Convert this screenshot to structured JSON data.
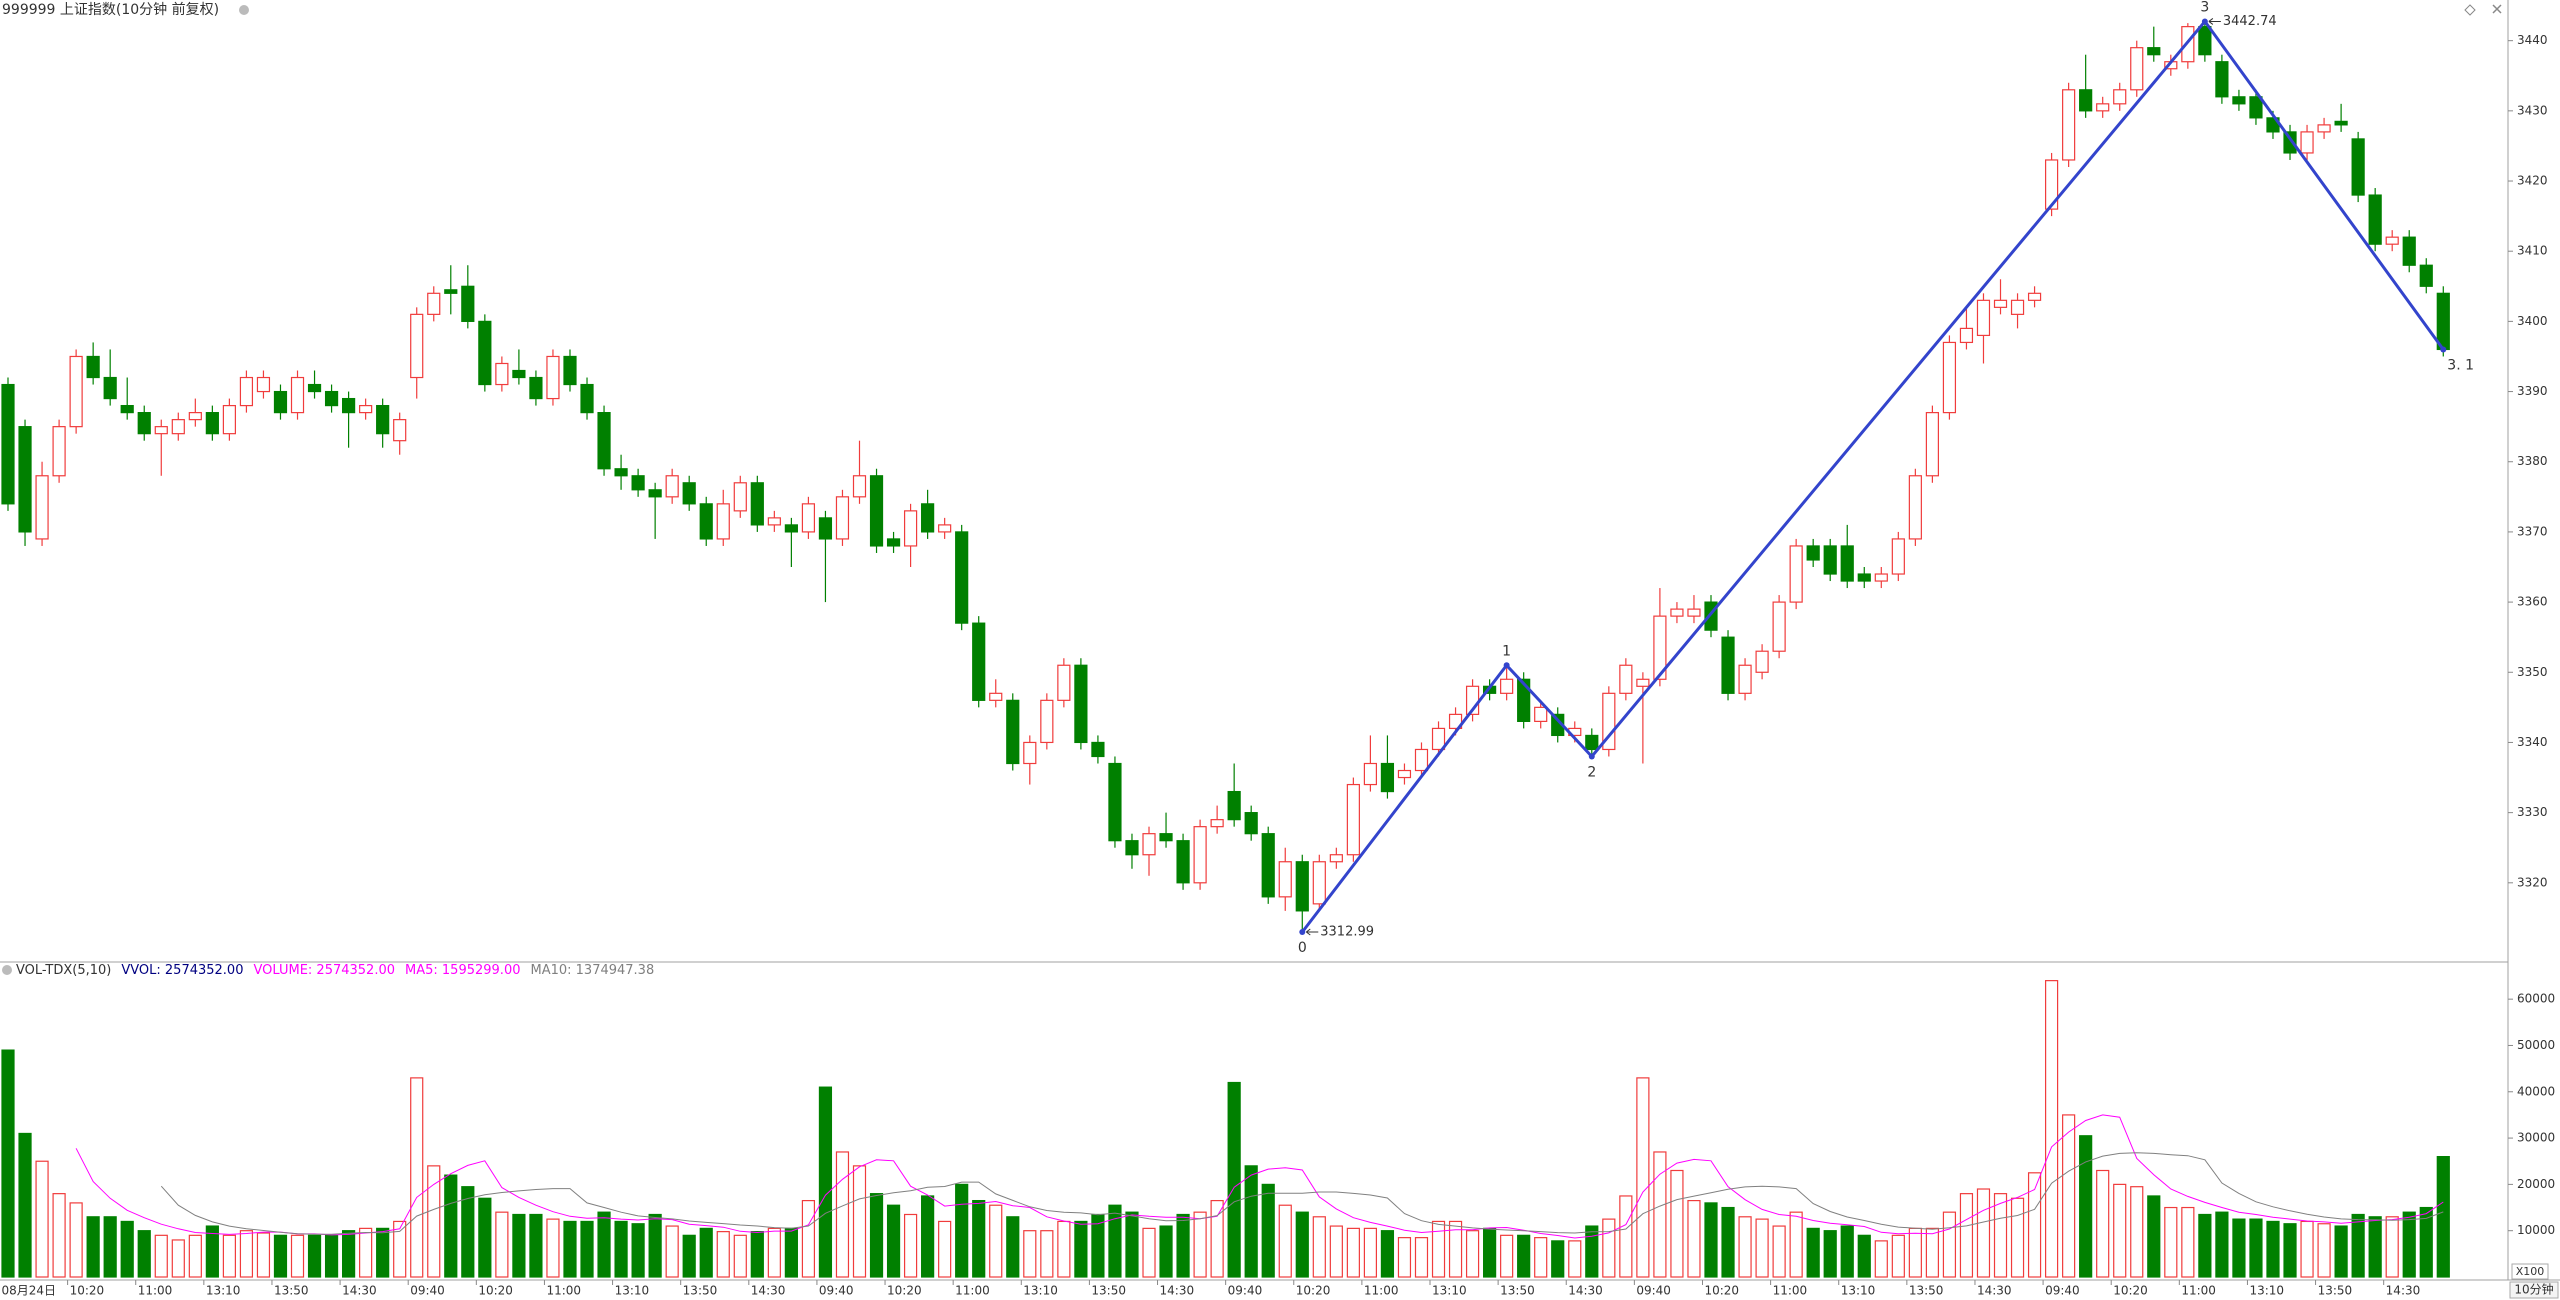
{
  "chart_data": {
    "type": "candlestick",
    "title": "999999 上证指数(10分钟 前复权)",
    "up_color": "#f03c3c",
    "down_color": "#008000",
    "categories": [
      "08月24日",
      null,
      null,
      null,
      "10:20",
      null,
      null,
      null,
      "11:00",
      null,
      null,
      null,
      "13:10",
      null,
      null,
      null,
      "13:50",
      null,
      null,
      null,
      "14:30",
      null,
      null,
      null,
      "09:40",
      null,
      null,
      null,
      "10:20",
      null,
      null,
      null,
      "11:00",
      null,
      null,
      null,
      "13:10",
      null,
      null,
      null,
      "13:50",
      null,
      null,
      null,
      "14:30",
      null,
      null,
      null,
      "09:40",
      null,
      null,
      null,
      "10:20",
      null,
      null,
      null,
      "11:00",
      null,
      null,
      null,
      "13:10",
      null,
      null,
      null,
      "13:50",
      null,
      null,
      null,
      "14:30",
      null,
      null,
      null,
      "09:40",
      null,
      null,
      null,
      "10:20",
      null,
      null,
      null,
      "11:00",
      null,
      null,
      null,
      "13:10",
      null,
      null,
      null,
      "13:50",
      null,
      null,
      null,
      "14:30",
      null,
      null,
      null,
      "09:40",
      null,
      null,
      null,
      "10:20",
      null,
      null,
      null,
      "11:00",
      null,
      null,
      null,
      "13:10",
      null,
      null,
      null,
      "13:50",
      null,
      null,
      null,
      "14:30",
      null,
      null,
      null,
      "09:40",
      null,
      null,
      null,
      "10:20",
      null,
      null,
      null,
      "11:00",
      null,
      null,
      null,
      "13:10",
      null,
      null,
      null,
      "13:50",
      null,
      null,
      null,
      "14:30",
      null,
      null,
      null
    ],
    "open": [
      3391,
      3385,
      3369,
      3378,
      3385,
      3395,
      3392,
      3388,
      3387,
      3384,
      3384,
      3386,
      3387,
      3384,
      3388,
      3390,
      3390,
      3387,
      3391,
      3390,
      3389,
      3387,
      3388,
      3383,
      3392,
      3401,
      3404.5,
      3405,
      3400,
      3391,
      3393,
      3392,
      3389,
      3395,
      3391,
      3387,
      3379,
      3378,
      3376,
      3375,
      3377,
      3374,
      3369,
      3373,
      3377,
      3371,
      3371,
      3370,
      3372,
      3369,
      3375,
      3378,
      3369,
      3368,
      3374,
      3370,
      3370,
      3357,
      3346,
      3346,
      3337,
      3340,
      3346,
      3351,
      3340,
      3337,
      3326,
      3324,
      3327,
      3326,
      3320,
      3328,
      3333,
      3330,
      3327,
      3318,
      3323,
      3317,
      3323,
      3324,
      3334,
      3337,
      3335,
      3336,
      3339,
      3342,
      3344,
      3348,
      3347,
      3349,
      3343,
      3344,
      3341,
      3341,
      3339,
      3347,
      3348,
      3349,
      3358,
      3358,
      3360,
      3355,
      3347,
      3350,
      3353,
      3360,
      3368,
      3368,
      3368,
      3364,
      3363,
      3364,
      3369,
      3378,
      3387,
      3397,
      3398,
      3402,
      3401,
      3403,
      3416,
      3423,
      3433,
      3430,
      3431,
      3433,
      3439,
      3436,
      3437,
      3442,
      3437,
      3432,
      3432,
      3429,
      3427,
      3424,
      3427,
      3428.5,
      3426,
      3418,
      3411,
      3412,
      3408,
      3404
    ],
    "high": [
      3392,
      3386,
      3380,
      3386,
      3396,
      3397,
      3396,
      3392,
      3388,
      3386,
      3387,
      3389,
      3388,
      3389,
      3393,
      3393,
      3391,
      3393,
      3393,
      3391,
      3390,
      3389,
      3389,
      3387,
      3402,
      3405,
      3408,
      3408,
      3401,
      3395,
      3396,
      3393,
      3396,
      3396,
      3392,
      3388,
      3381,
      3379,
      3377,
      3379,
      3378,
      3375,
      3376,
      3378,
      3378,
      3373,
      3372,
      3375,
      3373,
      3376,
      3383,
      3379,
      3370,
      3374,
      3376,
      3372,
      3371,
      3358,
      3349,
      3347,
      3341,
      3347,
      3352,
      3352,
      3341,
      3338,
      3327,
      3328,
      3330,
      3327,
      3329,
      3331,
      3337,
      3331,
      3328,
      3325,
      3324,
      3324,
      3325,
      3335,
      3341,
      3341,
      3337,
      3340,
      3343,
      3345,
      3349,
      3349,
      3351,
      3350,
      3346,
      3345,
      3343,
      3342,
      3348,
      3352,
      3350,
      3362,
      3360,
      3361,
      3361,
      3356,
      3352,
      3354,
      3361,
      3369,
      3369,
      3369,
      3371,
      3365,
      3365,
      3370,
      3379,
      3388,
      3398,
      3402,
      3404,
      3406,
      3404,
      3405,
      3424,
      3434,
      3438,
      3432,
      3434,
      3440,
      3442,
      3438,
      3442.5,
      3442.74,
      3438,
      3433,
      3433,
      3430,
      3428,
      3428,
      3429,
      3431,
      3427,
      3419,
      3413,
      3413,
      3409,
      3405
    ],
    "low": [
      3373,
      3368,
      3368,
      3377,
      3384,
      3391,
      3388,
      3386,
      3383,
      3378,
      3383,
      3385,
      3383,
      3383,
      3387,
      3389,
      3386,
      3386,
      3389,
      3387,
      3382,
      3386,
      3382,
      3381,
      3389,
      3400,
      3401,
      3399,
      3390,
      3390,
      3391,
      3388,
      3388,
      3390,
      3386,
      3378,
      3376,
      3375,
      3369,
      3374,
      3373,
      3368,
      3368,
      3372,
      3370,
      3370,
      3365,
      3369,
      3360,
      3368,
      3374,
      3367,
      3367,
      3365,
      3369,
      3369,
      3356,
      3345,
      3345,
      3336,
      3334,
      3339,
      3345,
      3339,
      3337,
      3325,
      3322,
      3321,
      3325,
      3319,
      3319,
      3327,
      3328,
      3326,
      3317,
      3316,
      3312.99,
      3316,
      3322,
      3323,
      3333,
      3332,
      3334,
      3335,
      3338,
      3341,
      3343,
      3346,
      3346,
      3342,
      3342,
      3340,
      3340,
      3338,
      3338,
      3346,
      3337,
      3348,
      3357,
      3357,
      3355,
      3346,
      3346,
      3349,
      3352,
      3359,
      3365,
      3363,
      3362,
      3362,
      3362,
      3363,
      3368,
      3377,
      3386,
      3396,
      3394,
      3401,
      3399,
      3402,
      3415,
      3422,
      3429,
      3429,
      3430,
      3432,
      3437,
      3435,
      3436,
      3437,
      3431,
      3430,
      3428,
      3426,
      3423,
      3423,
      3426,
      3427,
      3417,
      3410,
      3410,
      3407,
      3404,
      3395
    ],
    "close": [
      3374,
      3370,
      3378,
      3385,
      3395,
      3392,
      3389,
      3387,
      3384,
      3385,
      3386,
      3387,
      3384,
      3388,
      3392,
      3392,
      3387,
      3392,
      3390,
      3388,
      3387,
      3388,
      3384,
      3386,
      3401,
      3404,
      3404,
      3400,
      3391,
      3394,
      3392,
      3389,
      3395,
      3391,
      3387,
      3379,
      3378,
      3376,
      3375,
      3378,
      3374,
      3369,
      3374,
      3377,
      3371,
      3372,
      3370,
      3374,
      3369,
      3375,
      3378,
      3368,
      3368,
      3373,
      3370,
      3371,
      3357,
      3346,
      3347,
      3337,
      3340,
      3346,
      3351,
      3340,
      3338,
      3326,
      3324,
      3327,
      3326,
      3320,
      3328,
      3329,
      3329,
      3327,
      3318,
      3323,
      3316,
      3323,
      3324,
      3334,
      3337,
      3333,
      3336,
      3339,
      3342,
      3344,
      3348,
      3347,
      3349,
      3343,
      3345,
      3341,
      3342,
      3339,
      3347,
      3351,
      3349,
      3358,
      3359,
      3359,
      3356,
      3347,
      3351,
      3353,
      3360,
      3368,
      3366,
      3364,
      3363,
      3363,
      3364,
      3369,
      3378,
      3387,
      3397,
      3399,
      3403,
      3403,
      3403,
      3404,
      3423,
      3433,
      3430,
      3431,
      3433,
      3439,
      3438,
      3437,
      3442,
      3438,
      3432,
      3431,
      3429,
      3427,
      3424,
      3427,
      3428,
      3428,
      3418,
      3411,
      3412,
      3408,
      3405,
      3396
    ],
    "ylim": [
      3309,
      3443.8
    ],
    "yticks": [
      3320,
      3330,
      3340,
      3350,
      3360,
      3370,
      3380,
      3390,
      3400,
      3410,
      3420,
      3430,
      3440
    ],
    "zigzag": {
      "color": "#3344cc",
      "points": [
        {
          "x": 76,
          "value": 3312.99,
          "label": "0"
        },
        {
          "x": 88,
          "value": 3351,
          "label": "1"
        },
        {
          "x": 93,
          "value": 3338,
          "label": "2"
        },
        {
          "x": 129,
          "value": 3442.74,
          "label": "3"
        },
        {
          "x": 143,
          "value": 3396,
          "label": "3. 1"
        }
      ]
    },
    "price_labels": [
      {
        "x": 76,
        "value": 3312.99
      },
      {
        "x": 129,
        "value": 3442.74
      }
    ],
    "volume": {
      "title": "VOL-TDX(5,10)",
      "legend": [
        {
          "text": "VVOL: 2574352.00",
          "color": "#000080"
        },
        {
          "text": "VOLUME: 2574352.00",
          "color": "#ff00ff"
        },
        {
          "text": "MA5: 1595299.00",
          "color": "#ff00ff"
        },
        {
          "text": "MA10: 1374947.38",
          "color": "#808080"
        }
      ],
      "ma": [
        {
          "period": 5,
          "color": "#ff00ff"
        },
        {
          "period": 10,
          "color": "#808080"
        }
      ],
      "values": [
        49000,
        31000,
        25000,
        18000,
        16000,
        13000,
        13000,
        12000,
        10000,
        9000,
        8000,
        9000,
        11000,
        9000,
        10000,
        9500,
        9000,
        9000,
        9000,
        9000,
        10000,
        10500,
        10500,
        12000,
        43000,
        24000,
        22000,
        19500,
        17000,
        14000,
        13500,
        13500,
        12500,
        12000,
        12000,
        14000,
        12000,
        11500,
        13500,
        11000,
        9000,
        10500,
        9800,
        9000,
        9800,
        10500,
        10500,
        16500,
        41000,
        27000,
        24000,
        18000,
        15500,
        13500,
        17500,
        12000,
        20000,
        16500,
        15500,
        13000,
        10000,
        10000,
        12000,
        12000,
        13500,
        15500,
        14000,
        10500,
        11000,
        13500,
        14000,
        16500,
        42000,
        24000,
        20000,
        15500,
        14000,
        13000,
        11000,
        10500,
        10500,
        10000,
        8500,
        8500,
        12000,
        12000,
        10000,
        10500,
        9000,
        9000,
        8500,
        7800,
        7800,
        11000,
        12500,
        17500,
        43000,
        27000,
        23000,
        16500,
        16000,
        15000,
        13000,
        12500,
        11000,
        14000,
        10500,
        10000,
        11000,
        9000,
        7800,
        9000,
        10500,
        10500,
        14000,
        18000,
        19000,
        18000,
        17000,
        22500,
        64000,
        35000,
        30500,
        23000,
        20000,
        19500,
        17500,
        15000,
        15000,
        13500,
        14000,
        12500,
        12500,
        12000,
        11500,
        12000,
        11500,
        11000,
        13500,
        13000,
        13000,
        14000,
        15000,
        26000
      ],
      "ylim": [
        0,
        65000
      ],
      "yticks": [
        10000,
        20000,
        30000,
        40000,
        50000,
        60000
      ],
      "unit_label": "X100"
    },
    "period_label": "10分钟"
  }
}
